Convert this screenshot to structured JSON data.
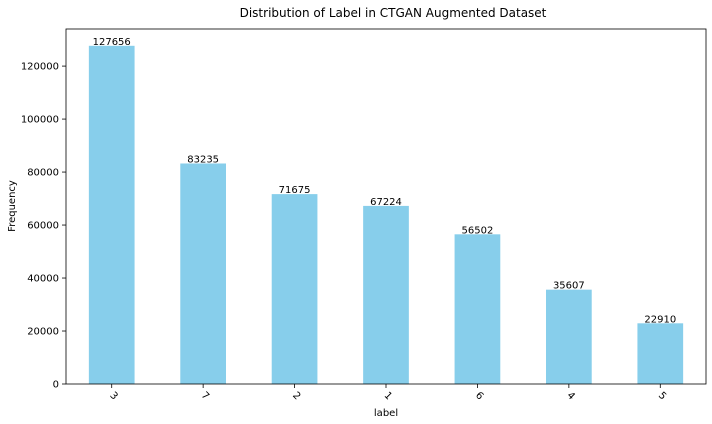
{
  "chart_data": {
    "type": "bar",
    "title": "Distribution of Label in CTGAN Augmented Dataset",
    "xlabel": "label",
    "ylabel": "Frequency",
    "categories": [
      "3",
      "7",
      "2",
      "1",
      "6",
      "4",
      "5"
    ],
    "values": [
      127656,
      83235,
      71675,
      67224,
      56502,
      35607,
      22910
    ],
    "yticks": [
      0,
      20000,
      40000,
      60000,
      80000,
      100000,
      120000
    ],
    "ylim": [
      0,
      134000
    ],
    "grid": false,
    "legend": "none",
    "bar_color": "#87ceeb",
    "x_tick_rotation": 45
  }
}
